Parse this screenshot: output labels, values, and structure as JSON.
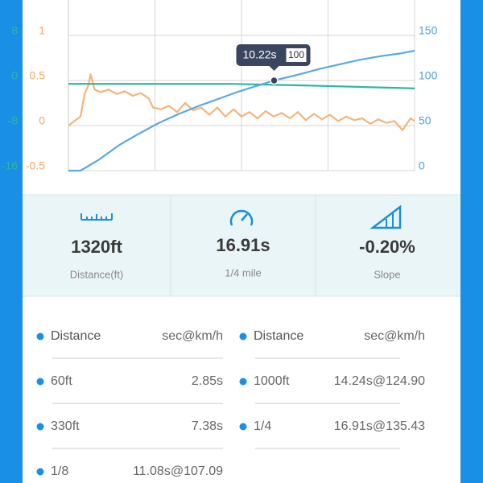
{
  "chart_data": {
    "type": "line",
    "xlim": [
      0,
      17.2
    ],
    "ylim": [
      -16,
      16
    ],
    "yticks": [
      -16,
      -8,
      0,
      8
    ],
    "ycolor": "#2bb5a8",
    "y3lim": [
      -0.5,
      1.5
    ],
    "y3ticks": [
      -0.5,
      0,
      0.5,
      1
    ],
    "y3color": "#f2a765",
    "y2lim": [
      0,
      200
    ],
    "y2ticks": [
      0,
      50,
      100,
      150
    ],
    "y2color": "#4aa3df",
    "grid": true,
    "series": [
      {
        "color": "#f5b47a",
        "axis": "y3",
        "x": [
          0,
          0.3,
          0.6,
          0.8,
          1.0,
          1.1,
          1.3,
          1.6,
          2.0,
          2.4,
          2.8,
          3.2,
          3.6,
          4.0,
          4.2,
          4.6,
          5.0,
          5.4,
          5.8,
          6.2,
          6.6,
          7.0,
          7.4,
          7.8,
          8.2,
          8.6,
          9.0,
          9.4,
          9.8,
          10.2,
          10.6,
          11.0,
          11.4,
          11.8,
          12.2,
          12.6,
          13.0,
          13.4,
          13.8,
          14.2,
          14.6,
          15.0,
          15.4,
          15.8,
          16.2,
          16.6,
          17.0,
          17.2
        ],
        "values": [
          0.0,
          0.05,
          0.1,
          0.35,
          0.45,
          0.57,
          0.4,
          0.37,
          0.4,
          0.35,
          0.38,
          0.33,
          0.36,
          0.3,
          0.2,
          0.18,
          0.22,
          0.15,
          0.25,
          0.17,
          0.2,
          0.12,
          0.2,
          0.1,
          0.18,
          0.1,
          0.15,
          0.08,
          0.16,
          0.1,
          0.14,
          0.08,
          0.15,
          0.06,
          0.13,
          0.07,
          0.12,
          0.05,
          0.1,
          0.06,
          0.08,
          0.02,
          0.07,
          0.03,
          0.05,
          -0.05,
          0.08,
          0.05
        ]
      },
      {
        "color": "#2bb5a8",
        "axis": "y",
        "x": [
          0,
          8,
          12,
          17.2
        ],
        "values": [
          -0.6,
          -0.6,
          -0.9,
          -1.4
        ]
      },
      {
        "color": "#5aa9e0",
        "axis": "y2",
        "x": [
          0,
          0.6,
          1.5,
          2.5,
          3.5,
          4.5,
          5.5,
          6.5,
          7.5,
          8.5,
          9.5,
          10.22,
          11.5,
          12.5,
          13.5,
          14.5,
          15.5,
          16.5,
          17.2
        ],
        "values": [
          0,
          0,
          12,
          28,
          41,
          53,
          63,
          72,
          80,
          88,
          95,
          100,
          107,
          113,
          118,
          123,
          127,
          130,
          133
        ]
      }
    ],
    "tooltip": {
      "x": 10.22,
      "label": "10.22s",
      "value": 100
    }
  },
  "stats": [
    {
      "value": "1320ft",
      "label": "Distance(ft)"
    },
    {
      "value": "16.91s",
      "label": "1/4 mile"
    },
    {
      "value": "-0.20%",
      "label": "Slope"
    }
  ],
  "splits": {
    "left": [
      [
        "Distance",
        "sec@km/h"
      ],
      [
        "60ft",
        "2.85s"
      ],
      [
        "330ft",
        "7.38s"
      ],
      [
        "1/8",
        "11.08s@107.09"
      ]
    ],
    "right": [
      [
        "Distance",
        "sec@km/h"
      ],
      [
        "1000ft",
        "14.24s@124.90"
      ],
      [
        "1/4",
        "16.91s@135.43"
      ]
    ]
  }
}
